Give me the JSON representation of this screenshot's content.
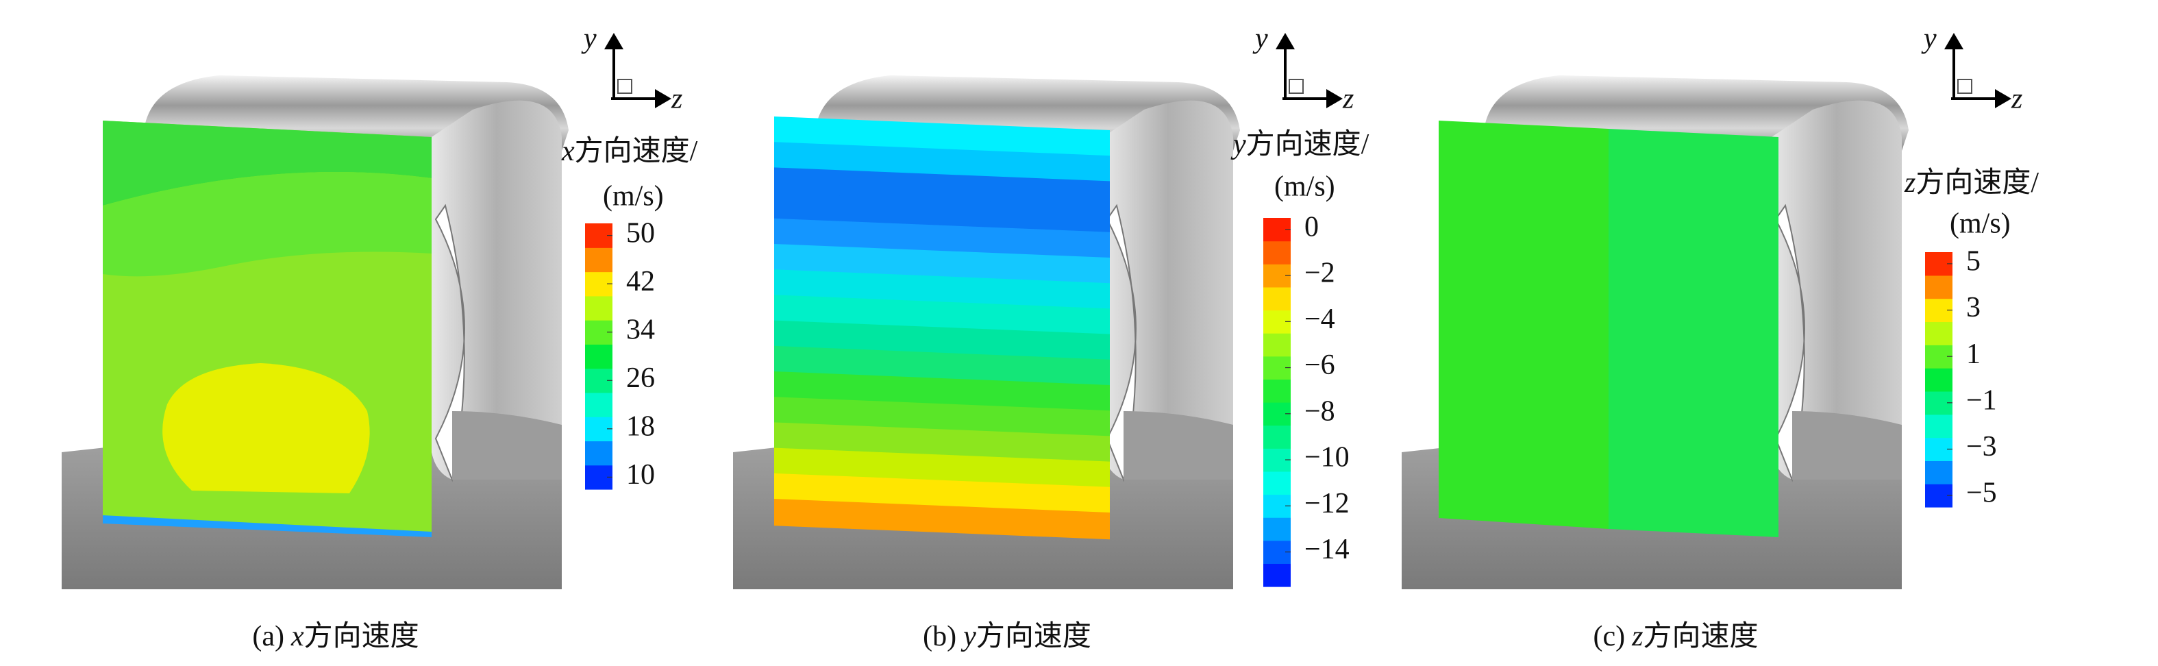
{
  "panels": [
    {
      "caption": {
        "label": "(a)",
        "axis": "x",
        "text": "方向速度"
      },
      "triad": {
        "y": "y",
        "z": "z"
      },
      "legend": {
        "axis": "x",
        "title": "方向速度/",
        "unit": "(m/s)",
        "lim": [
          8,
          52
        ],
        "ticks": [
          10,
          18,
          26,
          34,
          42,
          50
        ]
      }
    },
    {
      "caption": {
        "label": "(b)",
        "axis": "y",
        "text": "方向速度"
      },
      "triad": {
        "y": "y",
        "z": "z"
      },
      "legend": {
        "axis": "y",
        "title": "方向速度/",
        "unit": "(m/s)",
        "lim": [
          -15.5,
          0.5
        ],
        "ticks": [
          0,
          {
            "value": -2,
            "label": "−2"
          },
          {
            "value": -4,
            "label": "−4"
          },
          {
            "value": -6,
            "label": "−6"
          },
          {
            "value": -8,
            "label": "−8"
          },
          {
            "value": -10,
            "label": "−10"
          },
          {
            "value": -12,
            "label": "−12"
          },
          {
            "value": -14,
            "label": "−14"
          }
        ]
      }
    },
    {
      "caption": {
        "label": "(c)",
        "axis": "z",
        "text": "方向速度"
      },
      "triad": {
        "y": "y",
        "z": "z"
      },
      "legend": {
        "axis": "z",
        "title": "方向速度/",
        "unit": "(m/s)",
        "lim": [
          -5.5,
          5.5
        ],
        "ticks": [
          5,
          3,
          1,
          {
            "value": -1,
            "label": "−1"
          },
          {
            "value": -3,
            "label": "−3"
          },
          {
            "value": -5,
            "label": "−5"
          }
        ]
      }
    }
  ]
}
